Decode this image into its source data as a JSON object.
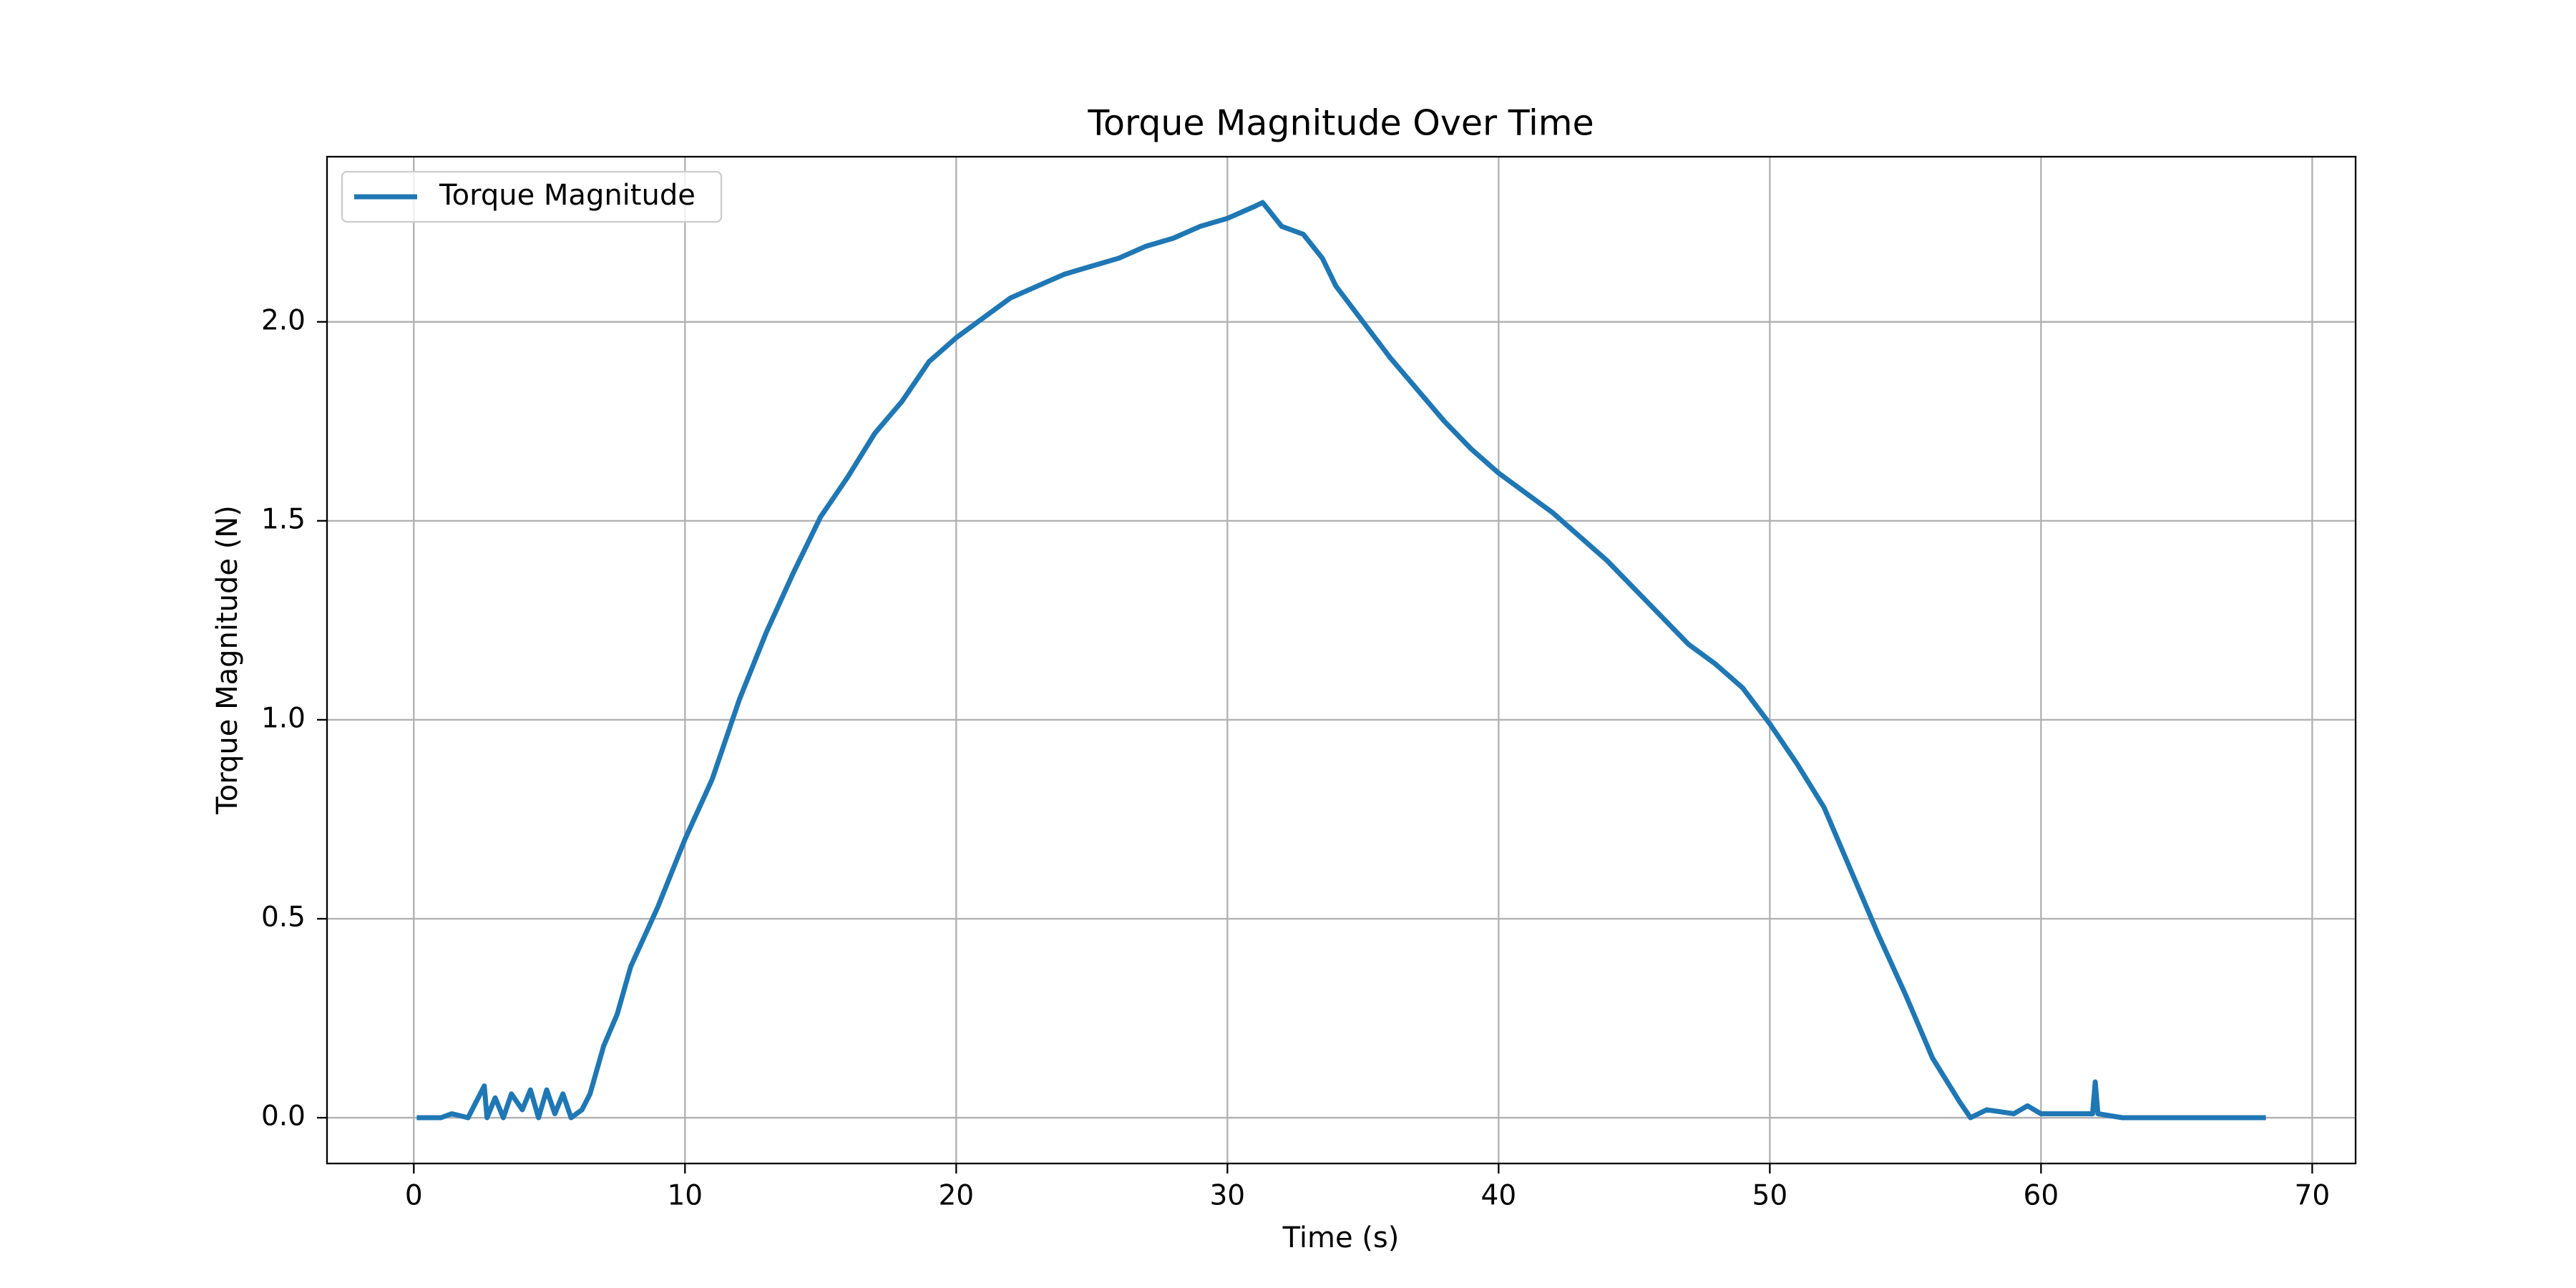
{
  "chart_data": {
    "type": "line",
    "title": "Torque Magnitude Over Time",
    "x_label": "Time (s)",
    "y_label": "Torque Magnitude (N)",
    "y_label_color": "#1f77b4",
    "x": [
      0.2,
      1,
      1.4,
      2,
      2.6,
      2.7,
      3,
      3.3,
      3.6,
      4,
      4.3,
      4.6,
      4.9,
      5.2,
      5.5,
      5.8,
      6.2,
      6.5,
      7,
      7.5,
      8,
      9,
      10,
      11,
      12,
      13,
      14,
      15,
      16,
      17,
      18,
      19,
      20,
      21,
      22,
      23,
      24,
      25,
      26,
      27,
      28,
      29,
      30,
      31,
      31.3,
      32,
      32.8,
      33.5,
      34,
      35,
      36,
      37,
      38,
      39,
      40,
      41,
      42,
      43,
      44,
      45,
      46,
      47,
      48,
      49,
      50,
      51,
      52,
      53,
      54,
      55,
      56,
      57,
      57.4,
      58,
      59,
      59.5,
      60,
      61,
      61.9,
      62,
      62.1,
      63,
      65,
      68.2
    ],
    "series": [
      {
        "name": "Torque Magnitude",
        "color": "#1f77b4",
        "values": [
          0,
          0,
          0.01,
          0,
          0.08,
          0,
          0.05,
          0,
          0.06,
          0.02,
          0.07,
          0,
          0.07,
          0.01,
          0.06,
          0,
          0.02,
          0.06,
          0.18,
          0.26,
          0.38,
          0.53,
          0.7,
          0.85,
          1.05,
          1.22,
          1.37,
          1.51,
          1.61,
          1.72,
          1.8,
          1.9,
          1.96,
          2.01,
          2.06,
          2.09,
          2.12,
          2.14,
          2.16,
          2.19,
          2.21,
          2.24,
          2.26,
          2.29,
          2.3,
          2.24,
          2.22,
          2.16,
          2.09,
          2.0,
          1.91,
          1.83,
          1.75,
          1.68,
          1.62,
          1.57,
          1.52,
          1.46,
          1.4,
          1.33,
          1.26,
          1.19,
          1.14,
          1.08,
          0.99,
          0.89,
          0.78,
          0.62,
          0.46,
          0.31,
          0.15,
          0.04,
          0,
          0.02,
          0.01,
          0.03,
          0.01,
          0.01,
          0.01,
          0.09,
          0.01,
          0,
          0,
          0
        ]
      }
    ],
    "xlim": [
      -3.2,
      71.6
    ],
    "ylim": [
      -0.115,
      2.415
    ],
    "xticks": [
      0,
      10,
      20,
      30,
      40,
      50,
      60,
      70
    ],
    "yticks": [
      {
        "value": 0,
        "label": "0.0"
      },
      0.5,
      {
        "value": 1,
        "label": "1.0"
      },
      1.5,
      {
        "value": 2,
        "label": "2.0"
      }
    ],
    "grid": true,
    "legend": "upper left"
  }
}
